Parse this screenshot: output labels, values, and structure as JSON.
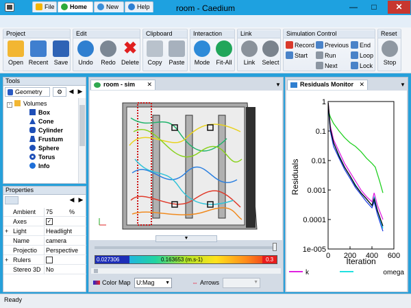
{
  "window": {
    "title": "room - Caedium"
  },
  "menu_tabs": [
    {
      "label": "File"
    },
    {
      "label": "Home"
    },
    {
      "label": "New"
    },
    {
      "label": "Help"
    }
  ],
  "ribbon": {
    "project": {
      "title": "Project",
      "open": "Open",
      "recent": "Recent",
      "save": "Save"
    },
    "edit": {
      "title": "Edit",
      "undo": "Undo",
      "redo": "Redo",
      "delete": "Delete"
    },
    "clipboard": {
      "title": "Clipboard",
      "copy": "Copy",
      "paste": "Paste"
    },
    "interaction": {
      "title": "Interaction",
      "mode": "Mode",
      "fit_all": "Fit-All"
    },
    "link": {
      "title": "Link",
      "link": "Link",
      "select": "Select"
    },
    "simulation": {
      "title": "Simulation Control",
      "record": "Record",
      "previous": "Previous",
      "end": "End",
      "start": "Start",
      "run": "Run",
      "loop": "Loop",
      "next": "Next",
      "lock": "Lock"
    },
    "reset": {
      "title": "Reset",
      "stop": "Stop"
    }
  },
  "tools": {
    "title": "Tools",
    "tab": "Geometry",
    "tree": [
      {
        "label": "Volumes"
      },
      {
        "label": "Box"
      },
      {
        "label": "Cone"
      },
      {
        "label": "Cylinder"
      },
      {
        "label": "Frustum"
      },
      {
        "label": "Sphere"
      },
      {
        "label": "Torus"
      },
      {
        "label": "Info"
      }
    ]
  },
  "properties": {
    "title": "Properties",
    "rows": [
      {
        "key": "Ambient",
        "value": "75",
        "unit": "%"
      },
      {
        "key": "Axes",
        "value": ""
      },
      {
        "key": "Light",
        "value": "Headlight"
      },
      {
        "key": "Name",
        "value": "camera"
      },
      {
        "key": "Projectio",
        "value": "Perspective"
      },
      {
        "key": "Rulers",
        "value": ""
      },
      {
        "key": "Stereo 3D",
        "value": "No"
      }
    ],
    "axes_checked": true,
    "rulers_checked": false
  },
  "viewport": {
    "tab": "room - sim",
    "colorbar": {
      "min": "0.027306",
      "mid": "0.163653 (m.s-1)",
      "max": "0.3"
    },
    "color_map_label": "Color Map",
    "color_map_value": "U:Mag",
    "arrows_label": "Arrows"
  },
  "residuals": {
    "tab": "Residuals Monitor"
  },
  "status": {
    "text": "Ready"
  },
  "chart_data": {
    "type": "line",
    "xlabel": "Iteration",
    "ylabel": "Residuals",
    "xlim": [
      0,
      600
    ],
    "ylim": [
      1e-05,
      1
    ],
    "yscale": "log",
    "xticks": [
      "0",
      "200",
      "400",
      "600"
    ],
    "yticks": [
      "1",
      "0.1",
      "0.01",
      "0.001",
      "0.0001",
      "1e-005"
    ],
    "legend_position": "bottom",
    "series": [
      {
        "name": "k",
        "color": "#e020e0",
        "x": [
          1,
          20,
          50,
          100,
          150,
          200,
          250,
          300,
          350,
          400,
          420,
          450,
          500
        ],
        "y": [
          0.9,
          0.15,
          0.05,
          0.02,
          0.008,
          0.004,
          0.002,
          0.001,
          0.0006,
          0.0004,
          0.0008,
          0.0003,
          0.0001
        ]
      },
      {
        "name": "omega",
        "color": "#20e0e0",
        "x": [
          1,
          20,
          50,
          100,
          150,
          200,
          250,
          300,
          350,
          400,
          420,
          450,
          500
        ],
        "y": [
          0.7,
          0.12,
          0.04,
          0.015,
          0.006,
          0.003,
          0.0015,
          0.0008,
          0.0005,
          0.0003,
          0.0006,
          0.0002,
          5e-05
        ]
      },
      {
        "name": "",
        "color": "#20d020",
        "x": [
          1,
          20,
          50,
          100,
          150,
          200,
          250,
          300,
          350,
          400,
          430,
          470,
          500
        ],
        "y": [
          0.5,
          0.3,
          0.18,
          0.1,
          0.06,
          0.04,
          0.03,
          0.02,
          0.012,
          0.008,
          0.006,
          0.002,
          0.0008
        ]
      },
      {
        "name": "",
        "color": "#2040e0",
        "x": [
          1,
          20,
          50,
          100,
          150,
          200,
          250,
          300,
          350,
          400,
          420,
          450,
          500
        ],
        "y": [
          0.8,
          0.1,
          0.03,
          0.012,
          0.005,
          0.0025,
          0.0012,
          0.0007,
          0.0004,
          0.00025,
          0.0004,
          0.00015,
          4e-05
        ]
      },
      {
        "name": "",
        "color": "#000000",
        "x": [
          1,
          20,
          50,
          100,
          150,
          200,
          250,
          300,
          350,
          400,
          420,
          450,
          500
        ],
        "y": [
          0.9,
          0.12,
          0.04,
          0.014,
          0.006,
          0.003,
          0.0014,
          0.0008,
          0.0005,
          0.0003,
          0.0005,
          0.0002,
          6e-05
        ]
      }
    ]
  }
}
